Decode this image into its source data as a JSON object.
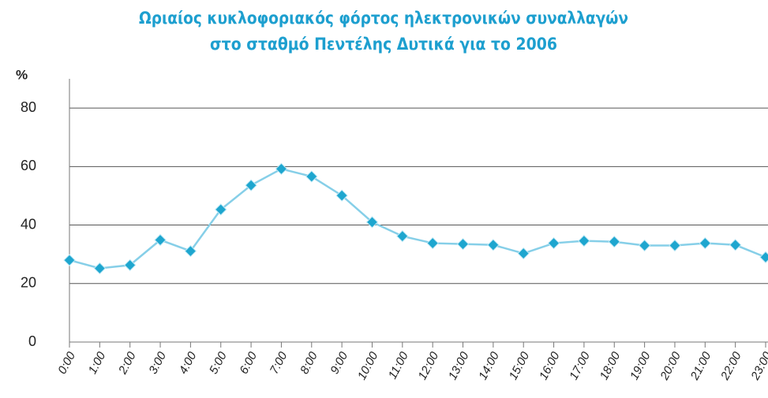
{
  "chart_data": {
    "type": "line",
    "title": [
      "Ωριαίος κυκλοφοριακός φόρτος ηλεκτρονικών συναλλαγών",
      "στο σταθμό Πεντέλης Δυτικά για το 2006"
    ],
    "y_label": "%",
    "categories": [
      "0:00",
      "1:00",
      "2:00",
      "3:00",
      "4:00",
      "5:00",
      "6:00",
      "7:00",
      "8:00",
      "9:00",
      "10:00",
      "11:00",
      "12:00",
      "13:00",
      "14:00",
      "15:00",
      "16:00",
      "17:00",
      "18:00",
      "19:00",
      "20:00",
      "21:00",
      "22:00",
      "23:00"
    ],
    "series": [
      {
        "name": "%",
        "color": "#86cfe8",
        "marker_color": "#1ea6cf",
        "values": [
          28,
          25.2,
          26.3,
          34.9,
          31.1,
          45.3,
          53.6,
          59.2,
          56.6,
          50.1,
          41,
          36.2,
          33.8,
          33.5,
          33.2,
          30.3,
          33.8,
          34.6,
          34.3,
          33,
          33,
          33.8,
          33.2,
          29
        ]
      }
    ],
    "ylim": [
      0,
      90
    ],
    "yticks": [
      0,
      20,
      40,
      60,
      80
    ],
    "grid": true
  }
}
